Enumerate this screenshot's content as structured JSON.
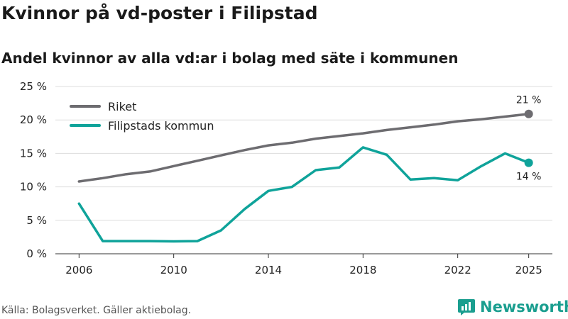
{
  "title": "Kvinnor på vd-poster i Filipstad",
  "subtitle": "Andel kvinnor av alla vd:ar i bolag med säte i kommunen",
  "source": "Källa: Bolagsverket. Gäller aktiebolag.",
  "logo": {
    "text": "Newsworthy",
    "icon": "newsworthy-chart-icon"
  },
  "colors": {
    "riket": "#6d6c70",
    "kommun": "#0fa39a",
    "grid": "#dddddd",
    "accent": "#1a9e8f"
  },
  "chart_data": {
    "type": "line",
    "title": "Kvinnor på vd-poster i Filipstad",
    "xlabel": "",
    "ylabel": "",
    "xlim": [
      2005,
      2026
    ],
    "ylim": [
      0,
      25
    ],
    "x_ticks": [
      2006,
      2010,
      2014,
      2018,
      2022,
      2025
    ],
    "y_ticks": [
      0,
      5,
      10,
      15,
      20,
      25
    ],
    "y_tick_labels": [
      "0 %",
      "5 %",
      "10 %",
      "15 %",
      "20 %",
      "25 %"
    ],
    "grid": true,
    "legend": "top-left",
    "x": [
      2006,
      2007,
      2008,
      2009,
      2010,
      2011,
      2012,
      2013,
      2014,
      2015,
      2016,
      2017,
      2018,
      2019,
      2020,
      2021,
      2022,
      2023,
      2024,
      2025
    ],
    "series": [
      {
        "name": "Riket",
        "color": "#6d6c70",
        "values": [
          10.8,
          11.3,
          11.9,
          12.3,
          13.1,
          13.9,
          14.7,
          15.5,
          16.2,
          16.6,
          17.2,
          17.6,
          18.0,
          18.5,
          18.9,
          19.3,
          19.8,
          20.1,
          20.5,
          20.9
        ],
        "end_label": "21 %"
      },
      {
        "name": "Filipstads kommun",
        "color": "#0fa39a",
        "values": [
          7.5,
          1.9,
          1.9,
          1.9,
          1.85,
          1.9,
          3.5,
          6.7,
          9.4,
          10.0,
          12.5,
          12.9,
          15.9,
          14.8,
          11.1,
          11.3,
          11.0,
          13.1,
          15.0,
          13.6
        ],
        "end_label": "14 %"
      }
    ]
  }
}
